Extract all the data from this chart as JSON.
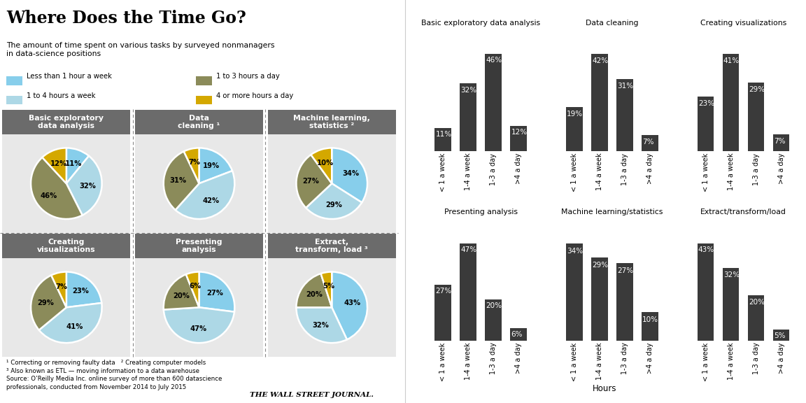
{
  "title": "Where Does the Time Go?",
  "subtitle": "The amount of time spent on various tasks by surveyed nonmanagers\nin data-science positions",
  "legend": [
    {
      "label": "Less than 1 hour a week",
      "color": "#87CEEB"
    },
    {
      "label": "1 to 3 hours a day",
      "color": "#8B8B5A"
    },
    {
      "label": "1 to 4 hours a week",
      "color": "#ADD8E6"
    },
    {
      "label": "4 or more hours a day",
      "color": "#D4A800"
    }
  ],
  "pie_charts": [
    {
      "title": "Basic exploratory\ndata analysis",
      "values": [
        11,
        32,
        46,
        12
      ],
      "colors": [
        "#87CEEB",
        "#ADD8E6",
        "#8B8B5A",
        "#D4A800"
      ],
      "labels": [
        "11%",
        "32%",
        "46%",
        "12%"
      ]
    },
    {
      "title": "Data\ncleaning ¹",
      "values": [
        19,
        42,
        31,
        7
      ],
      "colors": [
        "#87CEEB",
        "#ADD8E6",
        "#8B8B5A",
        "#D4A800"
      ],
      "labels": [
        "19%",
        "42%",
        "31%",
        "7%"
      ]
    },
    {
      "title": "Machine learning,\nstatistics ²",
      "values": [
        34,
        29,
        27,
        10
      ],
      "colors": [
        "#87CEEB",
        "#ADD8E6",
        "#8B8B5A",
        "#D4A800"
      ],
      "labels": [
        "34%",
        "29%",
        "27%",
        "10%"
      ]
    },
    {
      "title": "Creating\nvisualizations",
      "values": [
        23,
        41,
        29,
        7
      ],
      "colors": [
        "#87CEEB",
        "#ADD8E6",
        "#8B8B5A",
        "#D4A800"
      ],
      "labels": [
        "23%",
        "41%",
        "29%",
        "7%"
      ]
    },
    {
      "title": "Presenting\nanalysis",
      "values": [
        27,
        47,
        20,
        6
      ],
      "colors": [
        "#87CEEB",
        "#ADD8E6",
        "#8B8B5A",
        "#D4A800"
      ],
      "labels": [
        "27%",
        "47%",
        "20%",
        "6%"
      ]
    },
    {
      "title": "Extract,\ntransform, load ³",
      "values": [
        43,
        32,
        20,
        5
      ],
      "colors": [
        "#87CEEB",
        "#ADD8E6",
        "#8B8B5A",
        "#D4A800"
      ],
      "labels": [
        "43%",
        "32%",
        "20%",
        "5%"
      ]
    }
  ],
  "bar_charts": [
    {
      "title": "Basic exploratory data analysis",
      "values": [
        11,
        32,
        46,
        12
      ],
      "xlabels": [
        "< 1 a week",
        "1-4 a week",
        "1-3 a day",
        ">4 a day"
      ]
    },
    {
      "title": "Data cleaning",
      "values": [
        19,
        42,
        31,
        7
      ],
      "xlabels": [
        "< 1 a week",
        "1-4 a week",
        "1-3 a day",
        ">4 a day"
      ]
    },
    {
      "title": "Creating visualizations",
      "values": [
        23,
        41,
        29,
        7
      ],
      "xlabels": [
        "< 1 a week",
        "1-4 a week",
        "1-3 a day",
        ">4 a day"
      ]
    },
    {
      "title": "Presenting analysis",
      "values": [
        27,
        47,
        20,
        6
      ],
      "xlabels": [
        "< 1 a week",
        "1-4 a week",
        "1-3 a day",
        ">4 a day"
      ]
    },
    {
      "title": "Machine learning/statistics",
      "values": [
        34,
        29,
        27,
        10
      ],
      "xlabels": [
        "< 1 a week",
        "1-4 a week",
        "1-3 a day",
        ">4 a day"
      ]
    },
    {
      "title": "Extract/transform/load",
      "values": [
        43,
        32,
        20,
        5
      ],
      "xlabels": [
        "< 1 a week",
        "1-4 a week",
        "1-3 a day",
        ">4 a day"
      ]
    }
  ],
  "bar_color": "#3A3A3A",
  "footnotes_line1": "¹ Correcting or removing faulty data   ² Creating computer models",
  "footnotes_line2": "³ Also known as ETL — moving information to a data warehouse",
  "footnotes_line3": "Source: O’Reilly Media Inc. online survey of more than 600 datascience",
  "footnotes_line4": "professionals, conducted from November 2014 to July 2015",
  "wsj_text": "THE WALL STREET JOURNAL.",
  "panel_bg": "#E8E8E8",
  "header_bg": "#6B6B6B",
  "header_text_color": "white"
}
